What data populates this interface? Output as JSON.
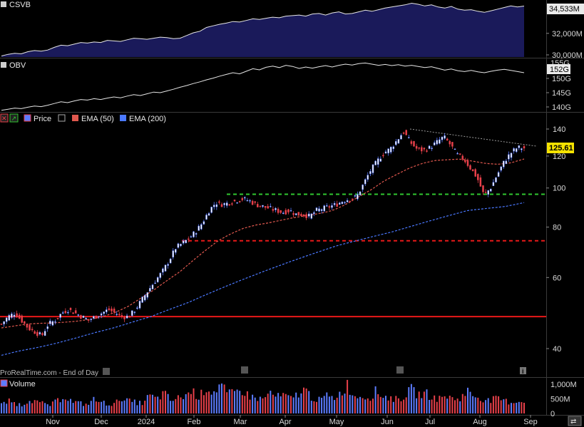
{
  "watermark": "ProRealTime.com - End of Day",
  "colors": {
    "up": "#5c7cff",
    "down": "#e8404a",
    "ema50": "#e0584e",
    "ema200": "#4a78ff",
    "support": "#e81818",
    "green_line": "#31c831",
    "red_dash": "#e81818",
    "csvb_fill": "#1a1a5a",
    "line_white": "#e6e6e6"
  },
  "panels": {
    "csvb": {
      "label": "CSVB",
      "last_value_label": "34,533M",
      "tick_labels": [
        "32,000M",
        "30,000M"
      ],
      "tick_values": [
        32000,
        30000
      ],
      "range": [
        29800,
        34900
      ],
      "series": [
        29900,
        30050,
        30150,
        30100,
        30300,
        30400,
        30350,
        30450,
        30700,
        30900,
        30850,
        31000,
        31150,
        31100,
        31200,
        31150,
        31350,
        31300,
        31250,
        31400,
        31550,
        31500,
        31450,
        31550,
        31650,
        31600,
        31500,
        31550,
        31800,
        32050,
        32200,
        32550,
        32700,
        32850,
        32950,
        33100,
        33050,
        33200,
        33350,
        33300,
        33400,
        33500,
        33450,
        33600,
        33650,
        33700,
        33600,
        33800,
        33850,
        33700,
        33900,
        34000,
        33800,
        33850,
        34000,
        34150,
        34050,
        34200,
        34350,
        34450,
        34550,
        34650,
        34800,
        34700,
        34550,
        34650,
        34450,
        34350,
        34500,
        34250,
        34150,
        34200,
        34050,
        33950,
        34100,
        34250,
        34400,
        34550,
        34450,
        34533
      ]
    },
    "obv": {
      "label": "OBV",
      "last_value_label": "152G",
      "covered_label": "155G",
      "tick_labels": [
        "150G",
        "145G",
        "140G"
      ],
      "tick_values": [
        150,
        145,
        140
      ],
      "range": [
        138.5,
        156
      ],
      "series": [
        138.8,
        139.2,
        139.6,
        139.4,
        139.9,
        140.3,
        140.1,
        140.6,
        141.2,
        141.8,
        141.5,
        142.1,
        142.6,
        142.4,
        142.9,
        142.6,
        143.1,
        143.5,
        143.2,
        143.8,
        144.3,
        144.0,
        144.6,
        145.2,
        145.0,
        145.6,
        146.2,
        146.9,
        147.5,
        148.2,
        148.8,
        149.5,
        150.1,
        150.8,
        151.4,
        152.0,
        151.6,
        152.5,
        153.4,
        153.0,
        153.9,
        154.3,
        153.8,
        154.6,
        154.2,
        153.5,
        154.0,
        153.6,
        154.1,
        154.5,
        154.0,
        154.6,
        155.0,
        154.7,
        155.2,
        155.4,
        155.0,
        154.6,
        154.9,
        154.5,
        154.8,
        154.3,
        154.6,
        154.2,
        153.8,
        154.1,
        153.5,
        152.9,
        153.3,
        152.7,
        152.4,
        152.8,
        152.3,
        152.0,
        152.5,
        152.9,
        153.2,
        152.8,
        152.4,
        152.0
      ]
    },
    "volume": {
      "label": "Volume",
      "tick_labels": [
        "1,000M",
        "500M",
        "0"
      ],
      "tick_values": [
        1000,
        500,
        0
      ],
      "max": 1150
    }
  },
  "legend": {
    "price": "Price",
    "ema50": "EMA (50)",
    "ema200": "EMA (200)"
  },
  "price_tag": "125.61",
  "x_axis_labels": [
    "Nov",
    "Dec",
    "2024",
    "Feb",
    "Mar",
    "Apr",
    "May",
    "Jun",
    "Jul",
    "Aug",
    "Sep"
  ],
  "chart_data": {
    "type": "candlestick",
    "scale": "log",
    "ylim": [
      34,
      150
    ],
    "y_ticks": [
      40,
      60,
      80,
      100,
      120,
      140
    ],
    "last_price": 125.61,
    "levels": [
      {
        "name": "",
        "value": 48,
        "style": "solid",
        "color": "#e81818"
      },
      {
        "name": "",
        "value": 74,
        "style": "dashed",
        "color": "#e81818"
      },
      {
        "name": "",
        "value": 96.5,
        "style": "dashed",
        "color": "#31c831"
      }
    ],
    "trendline": {
      "from": 140,
      "to": 127
    },
    "price_anchors": [
      46,
      48,
      49,
      47,
      45,
      44,
      43,
      46,
      47,
      49,
      50,
      49,
      48,
      47,
      48,
      49,
      50,
      49,
      48,
      48,
      50,
      53,
      56,
      59,
      62,
      66,
      71,
      73,
      75,
      78,
      82,
      88,
      92,
      91,
      92,
      93,
      94,
      93,
      91,
      90,
      89,
      88,
      87,
      88,
      86,
      86,
      85,
      88,
      89,
      90,
      91,
      93,
      94,
      95,
      102,
      110,
      116,
      122,
      125,
      131,
      138,
      130,
      125,
      124,
      126,
      130,
      134,
      128,
      121,
      118,
      112,
      106,
      96,
      100,
      108,
      116,
      122,
      126,
      125.61
    ],
    "ema50_anchors": [
      45,
      45.5,
      46,
      46.2,
      46.3,
      46.5,
      46.8,
      47.3,
      48,
      49.3,
      51,
      53.5,
      56,
      59,
      62,
      66,
      70,
      74,
      77,
      79.5,
      81,
      82,
      83.3,
      84.5,
      85.5,
      86.5,
      88,
      91,
      95,
      99,
      104,
      108,
      112,
      115,
      117,
      117.5,
      118,
      116.5,
      115,
      114.5,
      115.5,
      118
    ],
    "ema200_anchors": [
      38.5,
      39.5,
      40.3,
      41.3,
      42.5,
      43.8,
      45,
      46.5,
      48,
      50,
      52,
      54.5,
      57,
      59.5,
      62,
      64.5,
      67,
      69.5,
      72,
      74,
      76,
      78,
      80.5,
      83,
      85.5,
      88,
      89,
      90,
      92
    ],
    "volume_anchors": [
      300,
      420,
      350,
      280,
      520,
      380,
      330,
      290,
      450,
      610,
      400,
      360,
      300,
      480,
      390,
      340,
      310,
      560,
      420,
      380,
      350,
      620,
      480,
      700,
      440,
      520,
      610,
      780,
      560,
      900,
      720,
      1000,
      650,
      700,
      820,
      600,
      540,
      480,
      720,
      560,
      620,
      500,
      680,
      820,
      540,
      460,
      600,
      520,
      700,
      980,
      560,
      640,
      520,
      760,
      600,
      540,
      480,
      580,
      820,
      640,
      700,
      560,
      500,
      620,
      480,
      540,
      760,
      600,
      520,
      440,
      500,
      460,
      380,
      420,
      400
    ]
  }
}
